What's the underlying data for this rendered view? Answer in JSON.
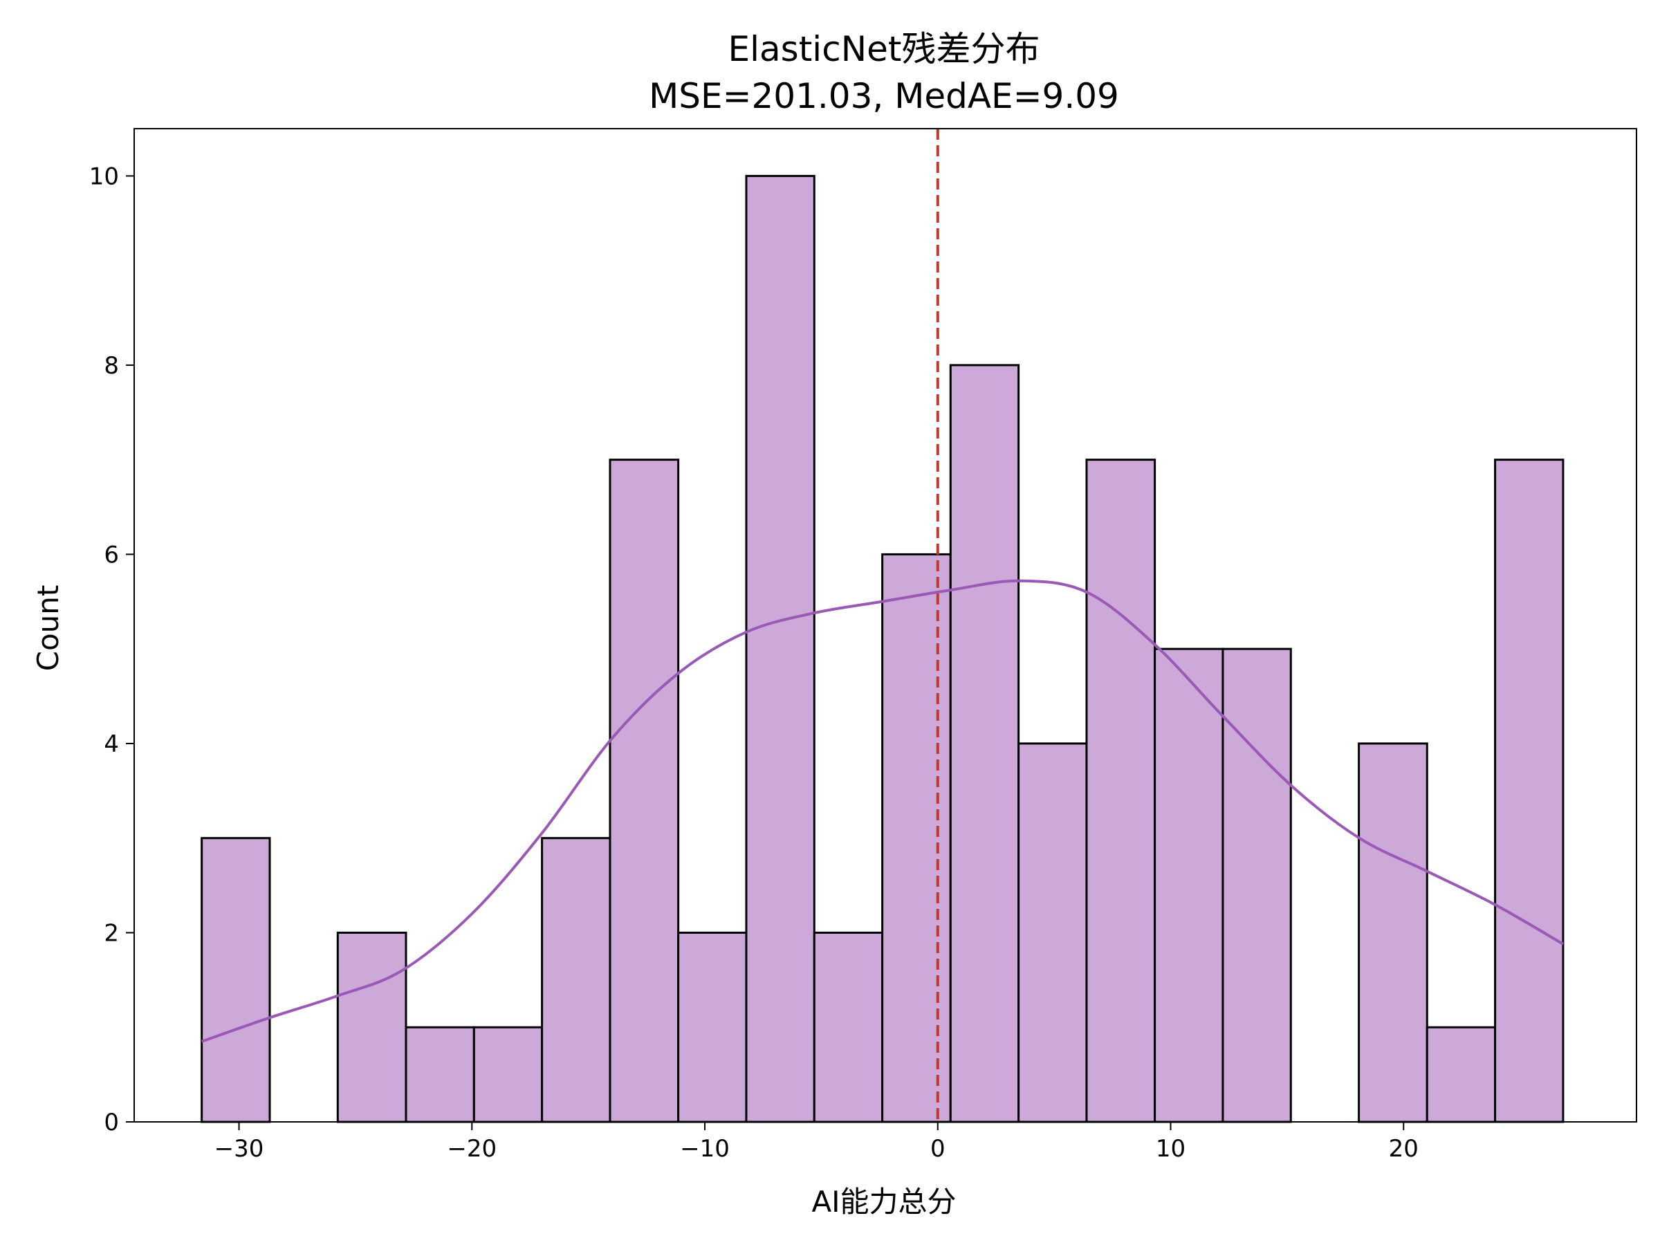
{
  "chart_data": {
    "type": "histogram",
    "title_line1": "ElasticNet残差分布",
    "title_line2": "MSE=201.03, MedAE=9.09",
    "xlabel": "AI能力总分",
    "ylabel": "Count",
    "xlim": [
      -34.5,
      30.0
    ],
    "ylim": [
      0,
      10.5
    ],
    "xticks": [
      -30,
      -20,
      -10,
      0,
      10,
      20
    ],
    "xtick_labels": [
      "−30",
      "−20",
      "−10",
      "0",
      "10",
      "20"
    ],
    "yticks": [
      0,
      2,
      4,
      6,
      8,
      10
    ],
    "ytick_labels": [
      "0",
      "2",
      "4",
      "6",
      "8",
      "10"
    ],
    "bins": [
      {
        "x0": -31.6,
        "x1": -28.68,
        "count": 3
      },
      {
        "x0": -28.68,
        "x1": -25.76,
        "count": 0
      },
      {
        "x0": -25.76,
        "x1": -22.83,
        "count": 2
      },
      {
        "x0": -22.83,
        "x1": -19.91,
        "count": 1
      },
      {
        "x0": -19.91,
        "x1": -16.99,
        "count": 1
      },
      {
        "x0": -16.99,
        "x1": -14.07,
        "count": 3
      },
      {
        "x0": -14.07,
        "x1": -11.14,
        "count": 7
      },
      {
        "x0": -11.14,
        "x1": -8.22,
        "count": 2
      },
      {
        "x0": -8.22,
        "x1": -5.3,
        "count": 10
      },
      {
        "x0": -5.3,
        "x1": -2.38,
        "count": 2
      },
      {
        "x0": -2.38,
        "x1": 0.55,
        "count": 6
      },
      {
        "x0": 0.55,
        "x1": 3.47,
        "count": 8
      },
      {
        "x0": 3.47,
        "x1": 6.39,
        "count": 4
      },
      {
        "x0": 6.39,
        "x1": 9.32,
        "count": 7
      },
      {
        "x0": 9.32,
        "x1": 12.24,
        "count": 5
      },
      {
        "x0": 12.24,
        "x1": 15.16,
        "count": 5
      },
      {
        "x0": 15.16,
        "x1": 18.08,
        "count": 0
      },
      {
        "x0": 18.08,
        "x1": 21.01,
        "count": 4
      },
      {
        "x0": 21.01,
        "x1": 23.93,
        "count": 1
      },
      {
        "x0": 23.93,
        "x1": 26.85,
        "count": 7
      }
    ],
    "kde": {
      "x": [
        -31.6,
        -28.7,
        -25.8,
        -23.0,
        -20.0,
        -17.0,
        -14.0,
        -11.1,
        -8.2,
        -5.3,
        -2.4,
        0.5,
        3.5,
        6.4,
        9.3,
        12.2,
        15.2,
        18.1,
        21.0,
        23.9,
        26.85
      ],
      "y": [
        0.85,
        1.1,
        1.33,
        1.6,
        2.2,
        3.05,
        4.05,
        4.75,
        5.18,
        5.38,
        5.5,
        5.62,
        5.72,
        5.6,
        5.05,
        4.3,
        3.55,
        3.0,
        2.65,
        2.3,
        1.88
      ]
    },
    "vline_x": 0,
    "colors": {
      "bar_fill": "#cca9d9",
      "bar_edge": "#000000",
      "kde_line": "#9b59b6",
      "vline": "#c0392b"
    },
    "grid": false,
    "legend": "none"
  }
}
